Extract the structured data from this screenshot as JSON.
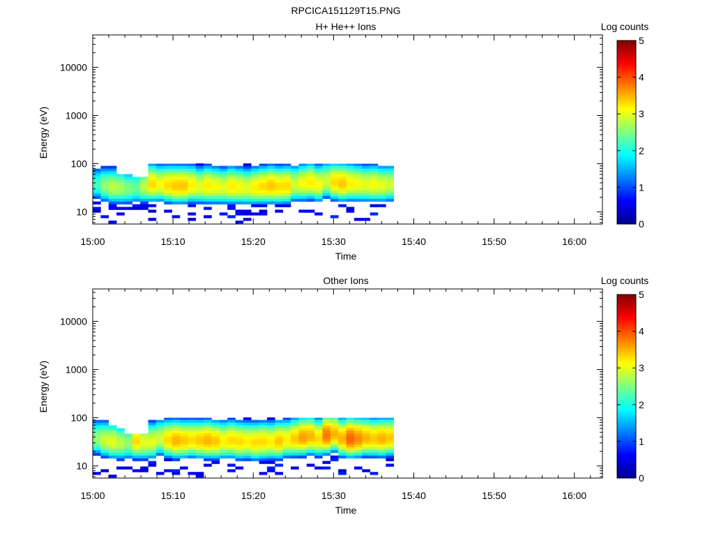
{
  "figure_title": "RPCICA151129T15.PNG",
  "colorbar": {
    "label": "Log counts",
    "ticks": [
      "0",
      "1",
      "2",
      "3",
      "4",
      "5"
    ],
    "range": [
      0,
      5
    ],
    "colormap": "jet"
  },
  "chart_data": [
    {
      "type": "heatmap",
      "title": "H+ He++ Ions",
      "xlabel": "Time",
      "ylabel": "Energy (eV)",
      "x_ticks": [
        "15:00",
        "15:10",
        "15:20",
        "15:30",
        "15:40",
        "15:50",
        "16:00"
      ],
      "x_range_minutes": [
        0,
        63.5
      ],
      "y_ticks": [
        "10",
        "100",
        "1000",
        "10000"
      ],
      "y_scale": "log",
      "y_range": [
        5.6,
        47000
      ],
      "data_end_minutes": 37.5,
      "energy_rows": [
        97,
        84,
        74,
        65,
        57,
        50,
        44,
        38,
        34,
        30,
        26,
        23,
        20,
        17.5,
        15.4,
        13.5,
        11.9,
        10.4,
        9.1,
        8,
        7,
        6.2
      ],
      "profile_levels": [
        2.2,
        2.6,
        2.8,
        2.7,
        2.5,
        2.4,
        2.8,
        3.3,
        3.1,
        3.3,
        3.4,
        3.4,
        3.2,
        3.0,
        3.2,
        3.1,
        3.0,
        3.2,
        3.1,
        3.0,
        3.2,
        3.3,
        3.4,
        3.3,
        3.3,
        2.9,
        3.1,
        3.2,
        3.1,
        2.9,
        3.3,
        3.4,
        3.2,
        3.1,
        3.0,
        3.1,
        3.0,
        2.9
      ],
      "profile_peak_ev": [
        36,
        34,
        32,
        31,
        30,
        31,
        33,
        37,
        36,
        35,
        34,
        34,
        35,
        33,
        34,
        33,
        32,
        33,
        32,
        31,
        32,
        33,
        34,
        33,
        34,
        36,
        38,
        40,
        36,
        42,
        40,
        38,
        38,
        37,
        36,
        36,
        35,
        36
      ],
      "top_cut_ev": [
        97,
        97,
        97,
        60,
        57,
        50,
        50,
        97,
        97,
        97,
        97,
        97,
        97,
        97,
        97,
        97,
        97,
        97,
        97,
        97,
        97,
        97,
        97,
        97,
        97,
        97,
        97,
        97,
        97,
        97,
        97,
        97,
        97,
        97,
        97,
        97,
        97,
        97
      ]
    },
    {
      "type": "heatmap",
      "title": "Other Ions",
      "xlabel": "Time",
      "ylabel": "Energy (eV)",
      "x_ticks": [
        "15:00",
        "15:10",
        "15:20",
        "15:30",
        "15:40",
        "15:50",
        "16:00"
      ],
      "x_range_minutes": [
        0,
        63.5
      ],
      "y_ticks": [
        "10",
        "100",
        "1000",
        "10000"
      ],
      "y_scale": "log",
      "y_range": [
        5.6,
        47000
      ],
      "data_end_minutes": 37.5,
      "energy_rows": [
        97,
        84,
        74,
        65,
        57,
        50,
        44,
        38,
        34,
        30,
        26,
        23,
        20,
        17.5,
        15.4,
        13.5,
        11.9,
        10.4,
        9.1,
        8,
        7,
        6.2
      ],
      "profile_levels": [
        2.6,
        2.9,
        3.0,
        2.8,
        2.6,
        3.3,
        3.0,
        3.0,
        2.9,
        3.3,
        3.5,
        3.4,
        3.3,
        3.4,
        3.5,
        3.4,
        3.2,
        3.3,
        3.3,
        3.2,
        3.3,
        3.3,
        3.2,
        3.4,
        3.2,
        3.4,
        3.6,
        3.5,
        3.3,
        3.8,
        3.5,
        3.5,
        3.9,
        3.7,
        3.5,
        3.4,
        3.5,
        3.4
      ],
      "profile_peak_ev": [
        36,
        33,
        31,
        29,
        29,
        32,
        30,
        31,
        36,
        34,
        33,
        33,
        34,
        33,
        33,
        32,
        32,
        33,
        31,
        31,
        30,
        31,
        31,
        32,
        34,
        36,
        38,
        40,
        36,
        42,
        45,
        36,
        36,
        36,
        37,
        36,
        36,
        37
      ],
      "top_cut_ev": [
        97,
        97,
        66,
        57,
        46,
        44,
        46,
        97,
        97,
        97,
        97,
        97,
        97,
        97,
        97,
        97,
        97,
        97,
        97,
        97,
        97,
        97,
        97,
        97,
        97,
        97,
        97,
        97,
        97,
        97,
        97,
        97,
        97,
        97,
        97,
        97,
        97,
        97
      ]
    }
  ]
}
